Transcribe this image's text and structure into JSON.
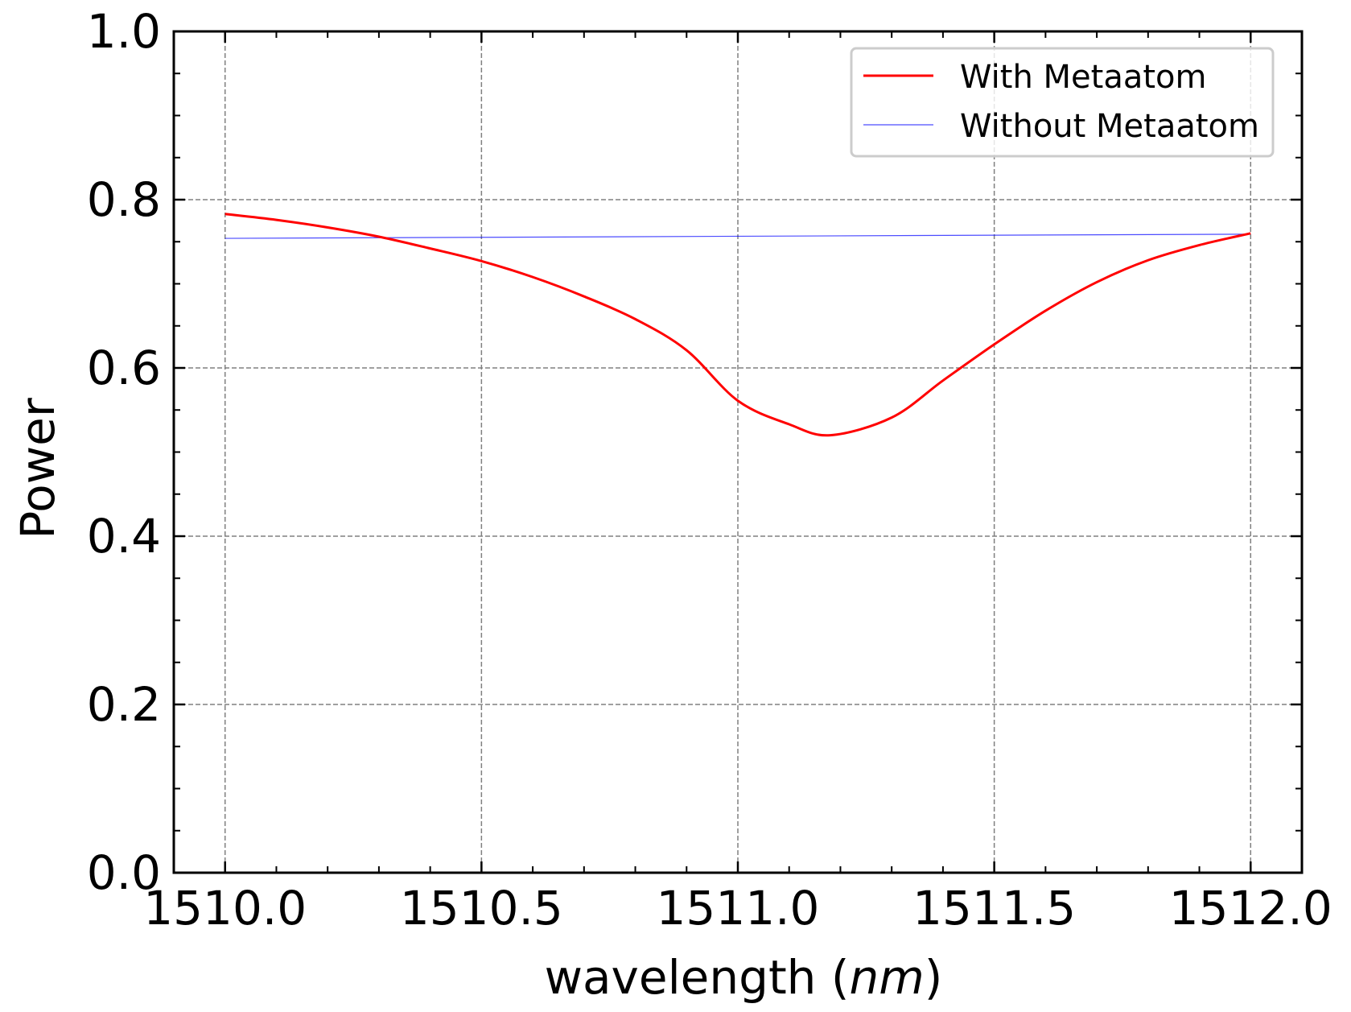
{
  "chart_data": {
    "type": "line",
    "title": "",
    "xlabel": "wavelength (",
    "xlabel_unit": "nm",
    "xlabel_close": ")",
    "ylabel": "Power",
    "xlim": [
      1509.9,
      1512.1
    ],
    "ylim": [
      0.0,
      1.0
    ],
    "x_ticks": [
      1510.0,
      1510.5,
      1511.0,
      1511.5,
      1512.0
    ],
    "x_tick_labels": [
      "1510.0",
      "1510.5",
      "1511.0",
      "1511.5",
      "1512.0"
    ],
    "y_ticks": [
      0.0,
      0.2,
      0.4,
      0.6,
      0.8,
      1.0
    ],
    "y_tick_labels": [
      "0.0",
      "0.2",
      "0.4",
      "0.6",
      "0.8",
      "1.0"
    ],
    "grid": true,
    "legend_position": "top-right",
    "series": [
      {
        "name": "With Metaatom",
        "color": "#ff0000",
        "x": [
          1510.0,
          1510.1,
          1510.2,
          1510.3,
          1510.4,
          1510.5,
          1510.6,
          1510.7,
          1510.8,
          1510.9,
          1511.0,
          1511.1,
          1511.18,
          1511.3,
          1511.4,
          1511.5,
          1511.6,
          1511.7,
          1511.8,
          1511.9,
          1512.0
        ],
        "y": [
          0.783,
          0.776,
          0.767,
          0.756,
          0.742,
          0.727,
          0.708,
          0.685,
          0.658,
          0.621,
          0.561,
          0.533,
          0.52,
          0.541,
          0.585,
          0.628,
          0.668,
          0.702,
          0.728,
          0.746,
          0.76
        ]
      },
      {
        "name": "Without Metaatom",
        "color": "#0000ff",
        "x": [
          1510.0,
          1512.0
        ],
        "y": [
          0.754,
          0.759
        ]
      }
    ]
  }
}
